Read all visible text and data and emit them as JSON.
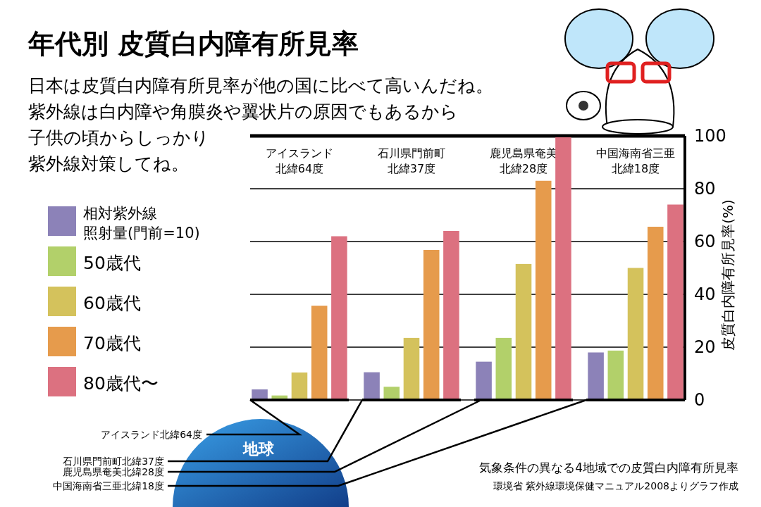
{
  "chart_data": {
    "type": "bar",
    "title": "年代別 皮質白内障有所見率",
    "subtitle": "日本は皮質白内障有所見率が他の国に比べて高いんだね。紫外線は白内障や角膜炎や翼状片の原因でもあるから子供の頃からしっかり紫外線対策してね。",
    "ylabel": "皮質白内障有所見率(%)",
    "categories": [
      "アイスランド北緯64度",
      "石川県門前町北緯37度",
      "鹿児島県奄美北緯28度",
      "中国海南省三亜北緯18度"
    ],
    "series": [
      {
        "name": "相対紫外線照射量(門前=10)",
        "color": "#8c82b8",
        "values": [
          4,
          10.5,
          14.5,
          18
        ]
      },
      {
        "name": "50歳代",
        "color": "#b2d06a",
        "values": [
          1.7,
          5,
          23.5,
          18.7
        ]
      },
      {
        "name": "60歳代",
        "color": "#d4c25c",
        "values": [
          10.4,
          23.5,
          51.5,
          50
        ]
      },
      {
        "name": "70歳代",
        "color": "#e69b4c",
        "values": [
          35.7,
          56.8,
          83,
          65.6
        ]
      },
      {
        "name": "80歳代〜",
        "color": "#dc7180",
        "values": [
          62,
          64,
          99.5,
          74
        ]
      }
    ],
    "ylim": [
      0,
      100
    ],
    "yticks": [
      0,
      20,
      40,
      60,
      80,
      100
    ],
    "grid": "y",
    "legend": "left",
    "annotations": [
      "地球",
      "アイスランド北緯64度",
      "石川県門前町北緯37度",
      "鹿児島県奄美北緯28度",
      "中国海南省三亜北緯18度",
      "気象条件の異なる4地域での皮質白内障有所見率",
      "環境省 紫外線環境保健マニュアル2008よりグラフ作成"
    ]
  }
}
